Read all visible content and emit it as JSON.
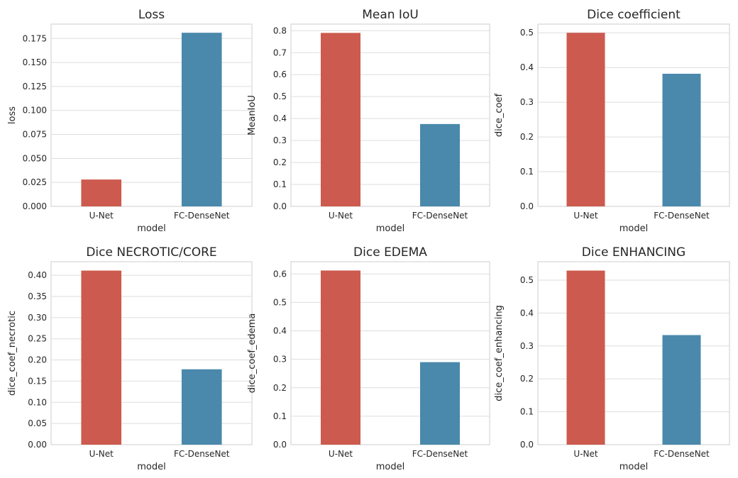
{
  "chart_data": [
    {
      "type": "bar",
      "title": "Loss",
      "xlabel": "model",
      "ylabel": "loss",
      "categories": [
        "U-Net",
        "FC-DenseNet"
      ],
      "values": [
        0.028,
        0.181
      ],
      "ylim": [
        0,
        0.19
      ],
      "yticks": [
        "0.000",
        "0.025",
        "0.050",
        "0.075",
        "0.100",
        "0.125",
        "0.150",
        "0.175"
      ],
      "grid": true,
      "colors": [
        "#cc5a4e",
        "#4a89ab"
      ]
    },
    {
      "type": "bar",
      "title": "Mean IoU",
      "xlabel": "model",
      "ylabel": "MeanIoU",
      "categories": [
        "U-Net",
        "FC-DenseNet"
      ],
      "values": [
        0.79,
        0.375
      ],
      "ylim": [
        0,
        0.83
      ],
      "yticks": [
        "0.0",
        "0.1",
        "0.2",
        "0.3",
        "0.4",
        "0.5",
        "0.6",
        "0.7",
        "0.8"
      ],
      "grid": true,
      "colors": [
        "#cc5a4e",
        "#4a89ab"
      ]
    },
    {
      "type": "bar",
      "title": "Dice coefficient",
      "xlabel": "model",
      "ylabel": "dice_coef",
      "categories": [
        "U-Net",
        "FC-DenseNet"
      ],
      "values": [
        0.5,
        0.382
      ],
      "ylim": [
        0,
        0.525
      ],
      "yticks": [
        "0.0",
        "0.1",
        "0.2",
        "0.3",
        "0.4",
        "0.5"
      ],
      "grid": true,
      "colors": [
        "#cc5a4e",
        "#4a89ab"
      ]
    },
    {
      "type": "bar",
      "title": "Dice NECROTIC/CORE",
      "xlabel": "model",
      "ylabel": "dice_coef_necrotic",
      "categories": [
        "U-Net",
        "FC-DenseNet"
      ],
      "values": [
        0.411,
        0.178
      ],
      "ylim": [
        0,
        0.432
      ],
      "yticks": [
        "0.00",
        "0.05",
        "0.10",
        "0.15",
        "0.20",
        "0.25",
        "0.30",
        "0.35",
        "0.40"
      ],
      "grid": true,
      "colors": [
        "#cc5a4e",
        "#4a89ab"
      ]
    },
    {
      "type": "bar",
      "title": "Dice EDEMA",
      "xlabel": "model",
      "ylabel": "dice_coef_edema",
      "categories": [
        "U-Net",
        "FC-DenseNet"
      ],
      "values": [
        0.612,
        0.29
      ],
      "ylim": [
        0,
        0.643
      ],
      "yticks": [
        "0.0",
        "0.1",
        "0.2",
        "0.3",
        "0.4",
        "0.5",
        "0.6"
      ],
      "grid": true,
      "colors": [
        "#cc5a4e",
        "#4a89ab"
      ]
    },
    {
      "type": "bar",
      "title": "Dice ENHANCING",
      "xlabel": "model",
      "ylabel": "dice_coef_enhancing",
      "categories": [
        "U-Net",
        "FC-DenseNet"
      ],
      "values": [
        0.529,
        0.333
      ],
      "ylim": [
        0,
        0.556
      ],
      "yticks": [
        "0.0",
        "0.1",
        "0.2",
        "0.3",
        "0.4",
        "0.5"
      ],
      "grid": true,
      "colors": [
        "#cc5a4e",
        "#4a89ab"
      ]
    }
  ]
}
